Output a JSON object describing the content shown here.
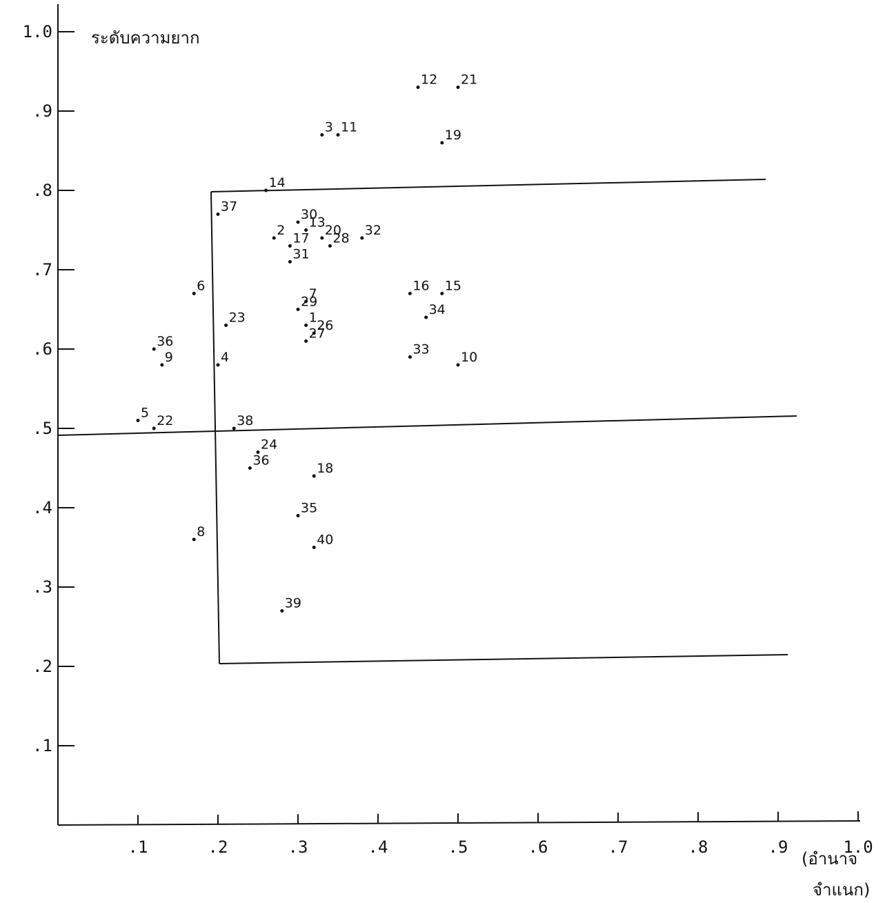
{
  "chart_data": {
    "type": "scatter",
    "ylabel": "ระดับความยาก",
    "xlabel_line1": "(อำนาจ",
    "xlabel_line2": "จำแนก)",
    "xlim": [
      0,
      1.0
    ],
    "ylim": [
      0,
      1.0
    ],
    "x_ticks": [
      ".1",
      ".2",
      ".3",
      ".4",
      ".5",
      ".6",
      ".7",
      ".8",
      ".9",
      "1.0"
    ],
    "y_ticks": [
      ".1",
      ".2",
      ".3",
      ".4",
      ".5",
      ".6",
      ".7",
      ".8",
      ".9",
      "1.0"
    ],
    "grid": false,
    "points": [
      {
        "label": "12",
        "x": 0.45,
        "y": 0.93
      },
      {
        "label": "21",
        "x": 0.5,
        "y": 0.93
      },
      {
        "label": "3",
        "x": 0.33,
        "y": 0.87
      },
      {
        "label": "11",
        "x": 0.35,
        "y": 0.87
      },
      {
        "label": "19",
        "x": 0.48,
        "y": 0.86
      },
      {
        "label": "14",
        "x": 0.26,
        "y": 0.8
      },
      {
        "label": "37",
        "x": 0.2,
        "y": 0.77
      },
      {
        "label": "30",
        "x": 0.3,
        "y": 0.76
      },
      {
        "label": "13",
        "x": 0.31,
        "y": 0.75
      },
      {
        "label": "2",
        "x": 0.27,
        "y": 0.74
      },
      {
        "label": "20",
        "x": 0.33,
        "y": 0.74
      },
      {
        "label": "32",
        "x": 0.38,
        "y": 0.74
      },
      {
        "label": "17",
        "x": 0.29,
        "y": 0.73
      },
      {
        "label": "28",
        "x": 0.34,
        "y": 0.73
      },
      {
        "label": "31",
        "x": 0.29,
        "y": 0.71
      },
      {
        "label": "6",
        "x": 0.17,
        "y": 0.67
      },
      {
        "label": "16",
        "x": 0.44,
        "y": 0.67
      },
      {
        "label": "15",
        "x": 0.48,
        "y": 0.67
      },
      {
        "label": "7",
        "x": 0.31,
        "y": 0.66
      },
      {
        "label": "29",
        "x": 0.3,
        "y": 0.65
      },
      {
        "label": "34",
        "x": 0.46,
        "y": 0.64
      },
      {
        "label": "23",
        "x": 0.21,
        "y": 0.63
      },
      {
        "label": "1",
        "x": 0.31,
        "y": 0.63
      },
      {
        "label": "26",
        "x": 0.32,
        "y": 0.62
      },
      {
        "label": "27",
        "x": 0.31,
        "y": 0.61
      },
      {
        "label": "36",
        "x": 0.12,
        "y": 0.6
      },
      {
        "label": "33",
        "x": 0.44,
        "y": 0.59
      },
      {
        "label": "10",
        "x": 0.5,
        "y": 0.58
      },
      {
        "label": "9",
        "x": 0.13,
        "y": 0.58
      },
      {
        "label": "4",
        "x": 0.2,
        "y": 0.58
      },
      {
        "label": "5",
        "x": 0.1,
        "y": 0.51
      },
      {
        "label": "22",
        "x": 0.12,
        "y": 0.5
      },
      {
        "label": "38",
        "x": 0.22,
        "y": 0.5
      },
      {
        "label": "24",
        "x": 0.25,
        "y": 0.47
      },
      {
        "label": "36",
        "x": 0.24,
        "y": 0.45
      },
      {
        "label": "18",
        "x": 0.32,
        "y": 0.44
      },
      {
        "label": "35",
        "x": 0.3,
        "y": 0.39
      },
      {
        "label": "40",
        "x": 0.32,
        "y": 0.35
      },
      {
        "label": "8",
        "x": 0.17,
        "y": 0.36
      },
      {
        "label": "39",
        "x": 0.28,
        "y": 0.27
      }
    ]
  }
}
